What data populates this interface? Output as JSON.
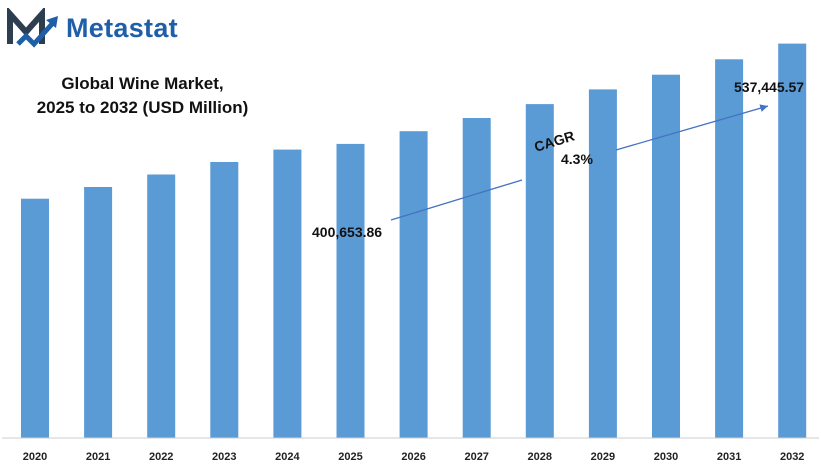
{
  "brand": {
    "name": "Metastat",
    "logo_icon": "metastat-m-logo",
    "color": "#1f5fa8",
    "mark_dark": "#2c3e50"
  },
  "chart_data": {
    "type": "bar",
    "title": [
      "Global Wine Market,",
      "2025 to 2032 (USD Million)"
    ],
    "categories": [
      "2020",
      "2021",
      "2022",
      "2023",
      "2024",
      "2025",
      "2026",
      "2027",
      "2028",
      "2029",
      "2030",
      "2031",
      "2032"
    ],
    "values": [
      326000,
      342000,
      359000,
      376000,
      393000,
      400653.86,
      418000,
      436000,
      455000,
      475000,
      495000,
      516000,
      537445.57
    ],
    "ylim": [
      0,
      560000
    ],
    "color": "#5b9bd5",
    "grid": false,
    "legend": "none",
    "annotations": {
      "start_label": "400,653.86",
      "end_label": "537,445.57",
      "cagr_label": "CAGR",
      "cagr_value": "4.3%",
      "arrow_color": "#4472c4"
    }
  }
}
